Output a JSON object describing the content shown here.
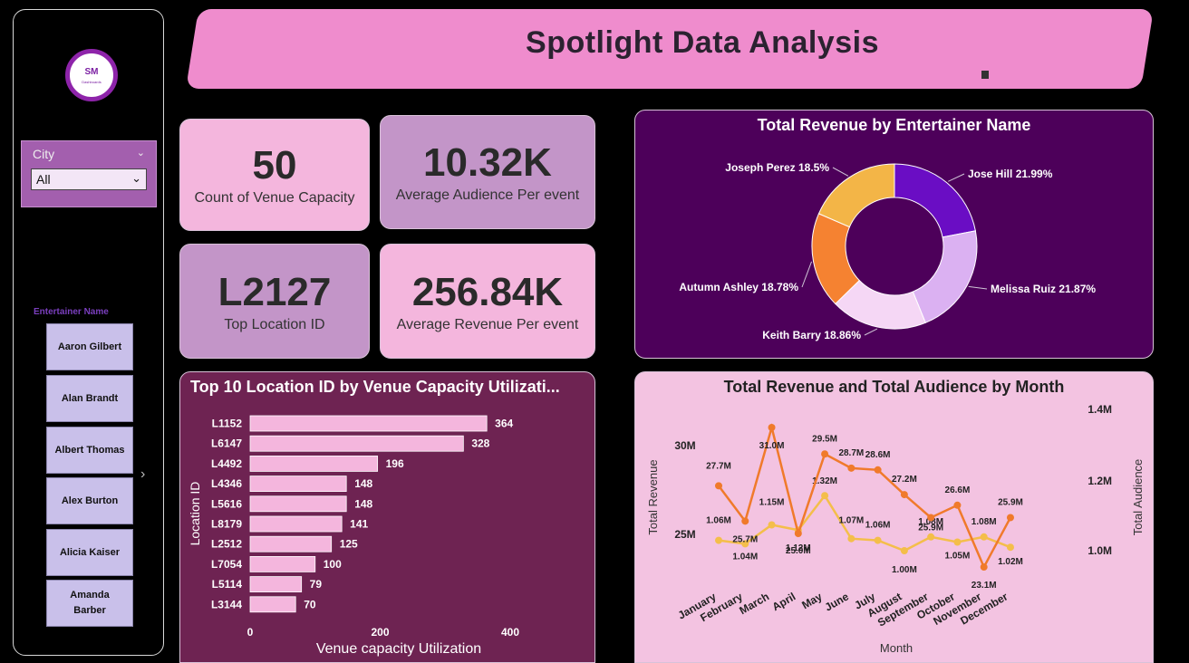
{
  "header": {
    "title": "Spotlight Data Analysis"
  },
  "logo": {
    "initials": "SM",
    "subtitle": "Dashboards"
  },
  "filters": {
    "city": {
      "label": "City",
      "selected": "All"
    },
    "entertainer": {
      "label": "Entertainer Name",
      "items": [
        "Aaron Gilbert",
        "Alan Brandt",
        "Albert Thomas",
        "Alex Burton",
        "Alicia Kaiser",
        "Amanda Barber"
      ]
    }
  },
  "kpis": [
    {
      "value": "50",
      "label": "Count of Venue Capacity"
    },
    {
      "value": "10.32K",
      "label": "Average Audience Per event"
    },
    {
      "value": "L2127",
      "label": "Top Location ID"
    },
    {
      "value": "256.84K",
      "label": "Average Revenue Per event"
    }
  ],
  "chart_data": [
    {
      "type": "pie",
      "title": "Total Revenue by Entertainer Name",
      "slices": [
        {
          "label": "Jose Hill",
          "percent": 21.99,
          "display": "Jose Hill 21.99%",
          "color": "#6a0dc4"
        },
        {
          "label": "Melissa Ruiz",
          "percent": 21.87,
          "display": "Melissa Ruiz 21.87%",
          "color": "#dbb1f2"
        },
        {
          "label": "Keith Barry",
          "percent": 18.86,
          "display": "Keith Barry 18.86%",
          "color": "#f5d7f5"
        },
        {
          "label": "Autumn Ashley",
          "percent": 18.78,
          "display": "Autumn Ashley 18.78%",
          "color": "#f58231"
        },
        {
          "label": "Joseph Perez",
          "percent": 18.5,
          "display": "Joseph Perez 18.5%",
          "color": "#f3b547"
        }
      ]
    },
    {
      "type": "bar",
      "orientation": "horizontal",
      "title": "Top 10 Location ID by Venue Capacity Utilizati...",
      "xlabel": "Venue capacity Utilization",
      "ylabel": "Location ID",
      "xlim": [
        0,
        400
      ],
      "xticks": [
        "0",
        "200",
        "400"
      ],
      "categories": [
        "L1152",
        "L6147",
        "L4492",
        "L4346",
        "L5616",
        "L8179",
        "L2512",
        "L7054",
        "L5114",
        "L3144"
      ],
      "values": [
        364,
        328,
        196,
        148,
        148,
        141,
        125,
        100,
        79,
        70
      ],
      "color": "#f4b6dd"
    },
    {
      "type": "line",
      "title": "Total Revenue and Total Audience by Month",
      "xlabel": "Month",
      "ylabel": "Total Revenue",
      "y2label": "Total Audience",
      "yticks": [
        "30M",
        "25M"
      ],
      "y2ticks": [
        "1.4M",
        "1.2M",
        "1.0M"
      ],
      "categories": [
        "January",
        "February",
        "March",
        "April",
        "May",
        "June",
        "July",
        "August",
        "September",
        "October",
        "November",
        "December"
      ],
      "series": [
        {
          "name": "Total Revenue",
          "axis": "left",
          "color": "#f07a2b",
          "values": [
            27.7,
            25.7,
            31.0,
            25.0,
            29.5,
            28.7,
            28.6,
            27.2,
            25.9,
            26.6,
            23.1,
            25.9
          ],
          "labels": [
            "27.7M",
            "25.7M",
            "31.0M",
            "25.0M",
            "29.5M",
            "28.7M",
            "28.6M",
            "27.2M",
            "25.9M",
            "26.6M",
            "23.1M",
            "25.9M"
          ]
        },
        {
          "name": "Total Audience",
          "axis": "right",
          "color": "#f4be4a",
          "values": [
            1.06,
            1.04,
            1.15,
            1.12,
            1.32,
            1.07,
            1.06,
            1.0,
            1.08,
            1.05,
            1.08,
            1.02
          ],
          "labels": [
            "1.06M",
            "1.04M",
            "1.15M",
            "1.12M",
            "1.32M",
            "1.07M",
            "1.06M",
            "1.00M",
            "1.08M",
            "1.05M",
            "1.08M",
            "1.02M"
          ]
        }
      ]
    }
  ]
}
